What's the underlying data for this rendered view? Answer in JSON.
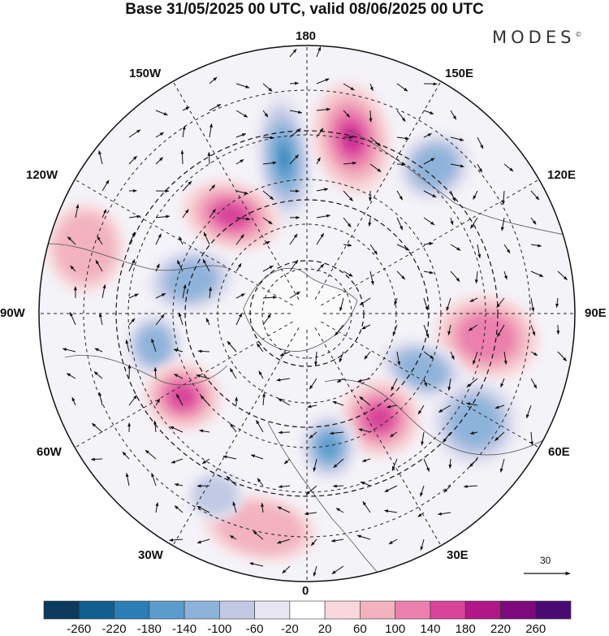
{
  "title": "Base 31/05/2025 00 UTC, valid 08/06/2025 00 UTC",
  "brand": "MODES",
  "brand_mark": "©",
  "longitude_labels": {
    "north": "180",
    "north_east": "150E",
    "east_upper": "120E",
    "east": "90E",
    "east_lower": "60E",
    "south_east": "30E",
    "south": "0",
    "south_west": "30W",
    "west_lower": "60W",
    "west": "90W",
    "west_upper": "120W",
    "north_west": "150W"
  },
  "reference_vector_label": "30",
  "colorbar": {
    "labels": [
      "-260",
      "-220",
      "-180",
      "-140",
      "-100",
      "-60",
      "-20",
      "20",
      "60",
      "100",
      "140",
      "180",
      "220",
      "260"
    ],
    "colors": [
      "#0b3a5c",
      "#125f8f",
      "#2b7db6",
      "#5b9ccc",
      "#8eb3da",
      "#c1c9e4",
      "#e7e6f2",
      "#ffffff",
      "#f8d8dc",
      "#f2b3bf",
      "#eb80ad",
      "#d8449a",
      "#b01888",
      "#7d0a7d",
      "#4b0a72"
    ]
  },
  "anomaly_centers": [
    {
      "id": "a1",
      "sign": "negative",
      "level": 4
    },
    {
      "id": "a2",
      "sign": "positive",
      "level": 4
    },
    {
      "id": "a3",
      "sign": "negative",
      "level": 2
    },
    {
      "id": "a4",
      "sign": "positive",
      "level": 3
    },
    {
      "id": "a5",
      "sign": "positive",
      "level": 1
    },
    {
      "id": "a6",
      "sign": "negative",
      "level": 2
    },
    {
      "id": "a7",
      "sign": "negative",
      "level": 2
    },
    {
      "id": "a8",
      "sign": "positive",
      "level": 2
    },
    {
      "id": "a9",
      "sign": "positive",
      "level": 3
    },
    {
      "id": "a10",
      "sign": "negative",
      "level": 2
    },
    {
      "id": "a11",
      "sign": "positive",
      "level": 3
    },
    {
      "id": "a12",
      "sign": "negative",
      "level": 3
    },
    {
      "id": "a13",
      "sign": "negative",
      "level": 2
    },
    {
      "id": "a14",
      "sign": "positive",
      "level": 1
    },
    {
      "id": "a15",
      "sign": "negative",
      "level": 1
    }
  ]
}
